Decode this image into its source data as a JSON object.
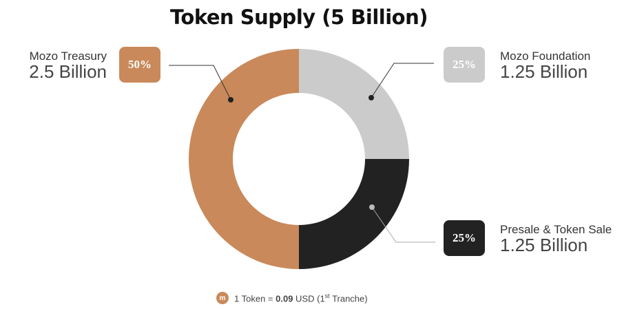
{
  "chart_data": {
    "type": "pie",
    "title": "Token Supply (5 Billion)",
    "categories": [
      "Mozo Treasury",
      "Mozo Foundation",
      "Presale & Token Sale"
    ],
    "values": [
      50,
      25,
      25
    ],
    "value_unit": "%",
    "amounts": [
      "2.5 Billion",
      "1.25 Billion",
      "1.25 Billion"
    ],
    "percent_labels": [
      "50%",
      "25%",
      "25%"
    ],
    "colors": [
      "#c9895a",
      "#cbcbcb",
      "#222222"
    ],
    "donut": true
  },
  "footer": {
    "coin_icon": "m",
    "prefix": "1 Token = ",
    "price": "0.09",
    "currency": " USD (1",
    "ordinal": "st",
    "suffix": " Tranche)"
  }
}
